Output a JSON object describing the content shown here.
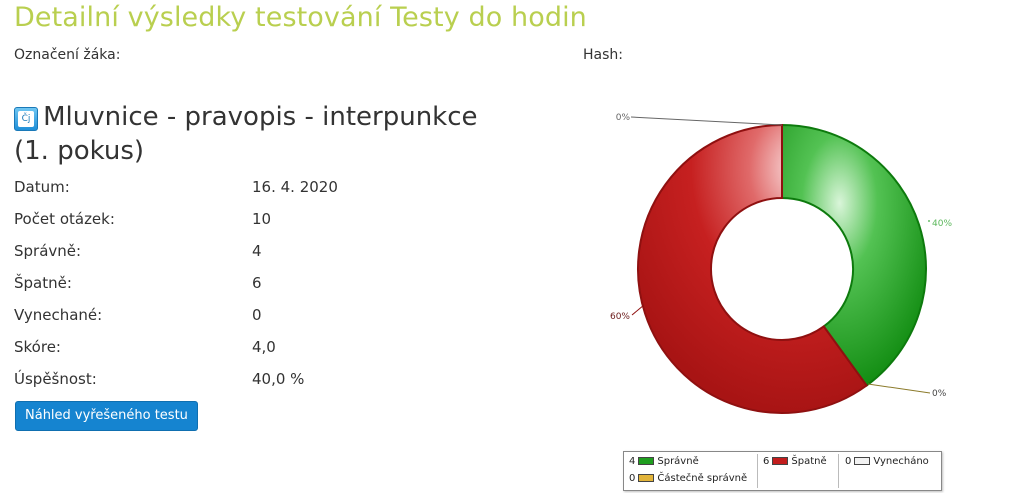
{
  "page_title": "Detailní výsledky testování Testy do hodin",
  "meta": {
    "student_label": "Označení žáka:",
    "hash_label": "Hash:"
  },
  "test": {
    "icon_text": "Čj",
    "icon": "czech-language-subject-icon",
    "title": "Mluvnice - pravopis - interpunkce (1. pokus)"
  },
  "stats": [
    {
      "label": "Datum:",
      "value": "16. 4. 2020"
    },
    {
      "label": "Počet otázek:",
      "value": "10"
    },
    {
      "label": "Správně:",
      "value": "4"
    },
    {
      "label": "Špatně:",
      "value": "6"
    },
    {
      "label": "Vynechané:",
      "value": "0"
    },
    {
      "label": "Skóre:",
      "value": "4,0"
    },
    {
      "label": "Úspěšnost:",
      "value": "40,0 %"
    }
  ],
  "solved_button_label": "Náhled vyřešeného testu",
  "chart_data": {
    "type": "pie",
    "variant": "donut",
    "slices": [
      {
        "name": "Správně",
        "value": 4,
        "label": "40%",
        "color": "#1f9e1f"
      },
      {
        "name": "Částečně správně",
        "value": 0,
        "label": "0%",
        "color": "#e2b43a"
      },
      {
        "name": "Špatně",
        "value": 6,
        "label": "60%",
        "color": "#c21d1d"
      },
      {
        "name": "Vynecháno",
        "value": 0,
        "label": "0%",
        "color": "#f2f2f2"
      }
    ],
    "legend": {
      "placement": "bottom",
      "items": [
        {
          "count": "4",
          "name": "Správně",
          "color": "#1f9e1f"
        },
        {
          "count": "0",
          "name": "Částečně správně",
          "color": "#e2b43a"
        },
        {
          "count": "6",
          "name": "Špatně",
          "color": "#c21d1d"
        },
        {
          "count": "0",
          "name": "Vynecháno",
          "color": "#f2f2f2"
        }
      ]
    }
  }
}
